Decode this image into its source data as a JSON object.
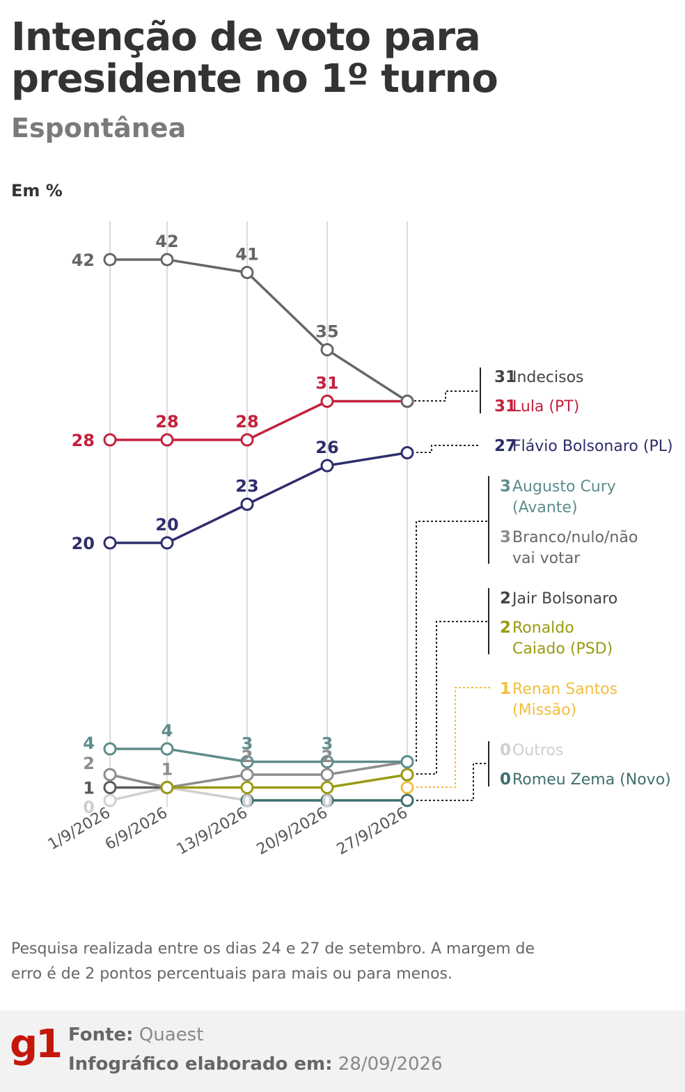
{
  "title": "Intenção de voto para presidente no 1º turno",
  "subtitle": "Espontânea",
  "unit_label": "Em %",
  "note": "Pesquisa realizada entre os dias 24 e 27 de setembro. A margem de erro é de 2 pontos percentuais para mais ou para menos.",
  "footer": {
    "logo": "g1",
    "source_label": "Fonte:",
    "source_value": "Quaest",
    "date_label": "Infográfico elaborado em:",
    "date_value": "28/09/2026"
  },
  "chart_data": {
    "type": "line",
    "x": [
      "1/9/2026",
      "6/9/2026",
      "13/9/2026",
      "20/9/2026",
      "27/9/2026"
    ],
    "series": [
      {
        "name": "Indecisos",
        "color": "#666666",
        "values": [
          42,
          42,
          41,
          35,
          31
        ],
        "label_lines": [
          "Indecisos"
        ]
      },
      {
        "name": "Lula (PT)",
        "color": "#c4213c",
        "values": [
          28,
          28,
          28,
          31,
          31
        ],
        "label_lines": [
          "Lula (PT)"
        ]
      },
      {
        "name": "Flávio Bolsonaro (PL)",
        "color": "#2e2d6b",
        "values": [
          20,
          20,
          23,
          26,
          27
        ],
        "label_lines": [
          "Flávio Bolsonaro (PL)"
        ]
      },
      {
        "name": "Augusto Cury (Avante)",
        "color": "#5e8c8c",
        "values": [
          4,
          4,
          3,
          3,
          3
        ],
        "label_lines": [
          "Augusto Cury",
          "(Avante)"
        ]
      },
      {
        "name": "Branco/nulo/não vai votar",
        "color": "#8c8c8c",
        "values": [
          2,
          1,
          2,
          2,
          3
        ],
        "label_lines": [
          "Branco/nulo/não",
          "vai votar"
        ]
      },
      {
        "name": "Jair Bolsonaro",
        "color": "#595959",
        "values": [
          1,
          1,
          null,
          null,
          2
        ],
        "label_lines": [
          "Jair Bolsonaro"
        ]
      },
      {
        "name": "Ronaldo Caiado (PSD)",
        "color": "#9a9a14",
        "values": [
          null,
          1,
          1,
          1,
          2
        ],
        "label_lines": [
          "Ronaldo",
          "Caiado (PSD)"
        ]
      },
      {
        "name": "Renan Santos (Missão)",
        "color": "#f2bf3f",
        "values": [
          null,
          null,
          null,
          null,
          1
        ],
        "label_lines": [
          "Renan Santos",
          "(Missão)"
        ]
      },
      {
        "name": "Outros",
        "color": "#cfcfcf",
        "values": [
          0,
          1,
          0,
          0,
          null
        ],
        "label_lines": [
          "Outros"
        ]
      },
      {
        "name": "Romeu Zema (Novo)",
        "color": "#3f6e6e",
        "values": [
          null,
          null,
          0,
          0,
          0
        ],
        "label_lines": [
          "Romeu Zema (Novo)"
        ]
      }
    ],
    "end_labels": [
      {
        "series": "Indecisos",
        "value": "31"
      },
      {
        "series": "Lula (PT)",
        "value": "31"
      },
      {
        "series": "Flávio Bolsonaro (PL)",
        "value": "27"
      },
      {
        "series": "Augusto Cury (Avante)",
        "value": "3"
      },
      {
        "series": "Branco/nulo/não vai votar",
        "value": "3"
      },
      {
        "series": "Jair Bolsonaro",
        "value": "2"
      },
      {
        "series": "Ronaldo Caiado (PSD)",
        "value": "2"
      },
      {
        "series": "Renan Santos (Missão)",
        "value": "1"
      },
      {
        "series": "Outros",
        "value": "0"
      },
      {
        "series": "Romeu Zema (Novo)",
        "value": "0"
      }
    ],
    "ylim": [
      0,
      42
    ],
    "grid": "vertical",
    "legend": "right end labels"
  }
}
